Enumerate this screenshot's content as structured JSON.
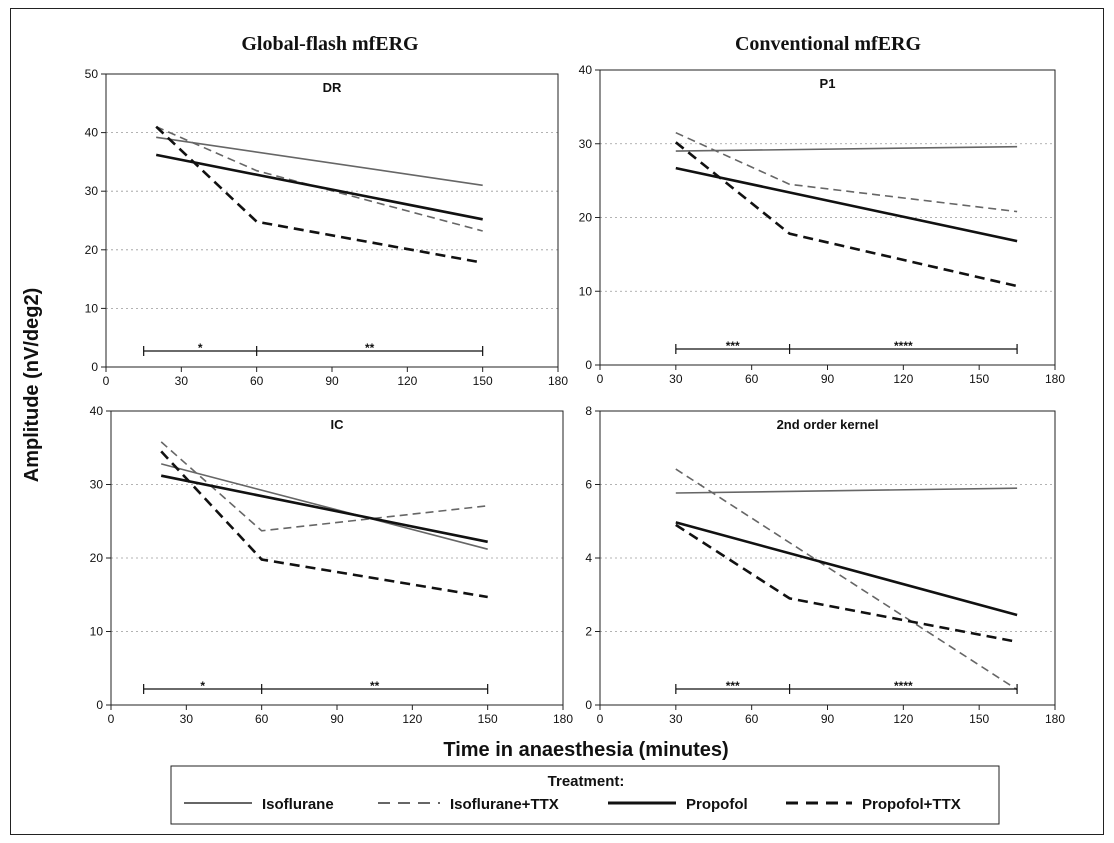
{
  "x_label": "Time in anaesthesia (minutes)",
  "y_label": "Amplitude (nV/deg2)",
  "column_titles": [
    "Global-flash mfERG",
    "Conventional mfERG"
  ],
  "legend": {
    "title": "Treatment:",
    "entries": [
      "Isoflurane",
      "Isoflurane+TTX",
      "Propofol",
      "Propofol+TTX"
    ]
  },
  "series_styles": [
    {
      "name": "Isoflurane",
      "color": "#666666",
      "dash": "solid",
      "weight": "thin"
    },
    {
      "name": "Isoflurane+TTX",
      "color": "#666666",
      "dash": "dashed",
      "weight": "thin"
    },
    {
      "name": "Propofol",
      "color": "#111111",
      "dash": "solid",
      "weight": "thick"
    },
    {
      "name": "Propofol+TTX",
      "color": "#111111",
      "dash": "dashed",
      "weight": "thick"
    }
  ],
  "chart_data": [
    {
      "type": "line",
      "title": "DR",
      "xlim": [
        0,
        180
      ],
      "ylim": [
        0,
        50
      ],
      "xticks": [
        0,
        30,
        60,
        90,
        120,
        150,
        180
      ],
      "yticks": [
        0,
        10,
        20,
        30,
        40,
        50
      ],
      "grid": "horizontal dotted",
      "series": [
        {
          "name": "Isoflurane",
          "x": [
            20,
            150
          ],
          "y": [
            39.2,
            31
          ]
        },
        {
          "name": "Isoflurane+TTX",
          "x": [
            20,
            60,
            150
          ],
          "y": [
            41,
            33.5,
            23.2
          ]
        },
        {
          "name": "Propofol",
          "x": [
            20,
            150
          ],
          "y": [
            36.2,
            25.2
          ]
        },
        {
          "name": "Propofol+TTX",
          "x": [
            20,
            60,
            150
          ],
          "y": [
            41,
            24.8,
            17.8
          ]
        }
      ],
      "significance": [
        {
          "from": 15,
          "to": 60,
          "label": "*"
        },
        {
          "from": 60,
          "to": 150,
          "label": "**"
        }
      ]
    },
    {
      "type": "line",
      "title": "P1",
      "xlim": [
        0,
        180
      ],
      "ylim": [
        0,
        40
      ],
      "xticks": [
        0,
        30,
        60,
        90,
        120,
        150,
        180
      ],
      "yticks": [
        0,
        10,
        20,
        30,
        40
      ],
      "grid": "horizontal dotted",
      "series": [
        {
          "name": "Isoflurane",
          "x": [
            30,
            165
          ],
          "y": [
            29,
            29.6
          ]
        },
        {
          "name": "Isoflurane+TTX",
          "x": [
            30,
            75,
            165
          ],
          "y": [
            31.5,
            24.5,
            20.8
          ]
        },
        {
          "name": "Propofol",
          "x": [
            30,
            165
          ],
          "y": [
            26.7,
            16.8
          ]
        },
        {
          "name": "Propofol+TTX",
          "x": [
            30,
            75,
            165
          ],
          "y": [
            30.2,
            17.8,
            10.7
          ]
        }
      ],
      "significance": [
        {
          "from": 30,
          "to": 75,
          "label": "***"
        },
        {
          "from": 75,
          "to": 165,
          "label": "****"
        }
      ]
    },
    {
      "type": "line",
      "title": "IC",
      "xlim": [
        0,
        180
      ],
      "ylim": [
        0,
        40
      ],
      "xticks": [
        0,
        30,
        60,
        90,
        120,
        150,
        180
      ],
      "yticks": [
        0,
        10,
        20,
        30,
        40
      ],
      "grid": "horizontal dotted",
      "series": [
        {
          "name": "Isoflurane",
          "x": [
            20,
            150
          ],
          "y": [
            32.8,
            21.2
          ]
        },
        {
          "name": "Isoflurane+TTX",
          "x": [
            20,
            60,
            150
          ],
          "y": [
            35.8,
            23.7,
            27.1
          ]
        },
        {
          "name": "Propofol",
          "x": [
            20,
            150
          ],
          "y": [
            31.2,
            22.2
          ]
        },
        {
          "name": "Propofol+TTX",
          "x": [
            20,
            60,
            150
          ],
          "y": [
            34.5,
            19.8,
            14.7
          ]
        }
      ],
      "significance": [
        {
          "from": 13,
          "to": 60,
          "label": "*"
        },
        {
          "from": 60,
          "to": 150,
          "label": "**"
        }
      ]
    },
    {
      "type": "line",
      "title": "2nd order kernel",
      "xlim": [
        0,
        180
      ],
      "ylim": [
        0,
        8
      ],
      "xticks": [
        0,
        30,
        60,
        90,
        120,
        150,
        180
      ],
      "yticks": [
        0,
        2,
        4,
        6,
        8
      ],
      "grid": "horizontal dotted",
      "series": [
        {
          "name": "Isoflurane",
          "x": [
            30,
            165
          ],
          "y": [
            5.77,
            5.9
          ]
        },
        {
          "name": "Isoflurane+TTX",
          "x": [
            30,
            165
          ],
          "y": [
            6.42,
            0.42
          ]
        },
        {
          "name": "Propofol",
          "x": [
            30,
            165
          ],
          "y": [
            4.97,
            2.45
          ]
        },
        {
          "name": "Propofol+TTX",
          "x": [
            30,
            75,
            165
          ],
          "y": [
            4.9,
            2.9,
            1.72
          ]
        }
      ],
      "significance": [
        {
          "from": 30,
          "to": 75,
          "label": "***"
        },
        {
          "from": 75,
          "to": 165,
          "label": "****"
        }
      ]
    }
  ]
}
